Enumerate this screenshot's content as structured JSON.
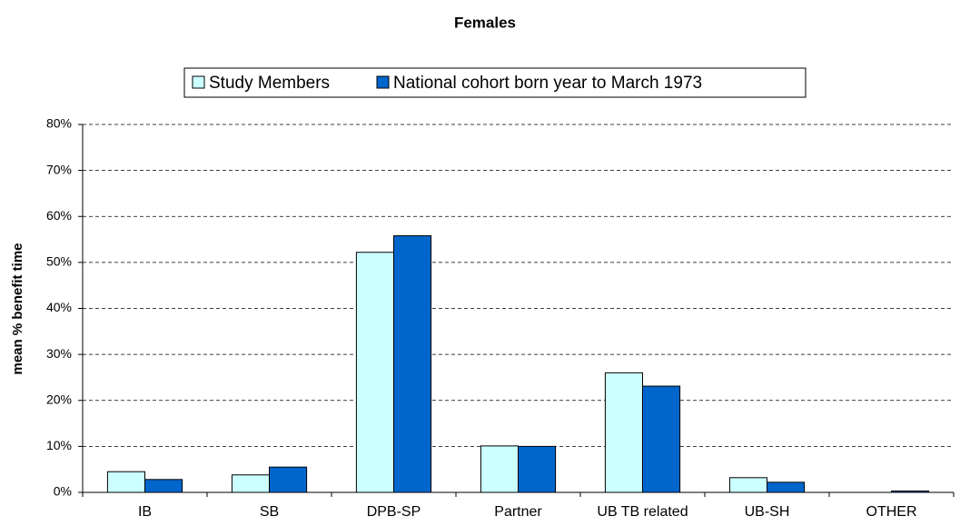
{
  "chart_data": {
    "type": "bar",
    "title": "Females",
    "y_label": "mean % benefit time",
    "categories": [
      "IB",
      "SB",
      "DPB-SP",
      "Partner",
      "UB TB related",
      "UB-SH",
      "OTHER"
    ],
    "series": [
      {
        "name": "Study Members",
        "color": "#ccffff",
        "values": [
          4.5,
          3.8,
          52.2,
          10.1,
          26.0,
          3.2,
          0
        ]
      },
      {
        "name": "National cohort born year to March 1973",
        "color": "#0066cc",
        "values": [
          2.8,
          5.5,
          55.8,
          10.0,
          23.1,
          2.2,
          0.3
        ]
      }
    ],
    "ylim": [
      0,
      80
    ],
    "yticks": [
      {
        "value": 0,
        "label": "0%"
      },
      {
        "value": 10,
        "label": "10%"
      },
      {
        "value": 20,
        "label": "20%"
      },
      {
        "value": 30,
        "label": "30%"
      },
      {
        "value": 40,
        "label": "40%"
      },
      {
        "value": 50,
        "label": "50%"
      },
      {
        "value": 60,
        "label": "60%"
      },
      {
        "value": 70,
        "label": "70%"
      },
      {
        "value": 80,
        "label": "80%"
      }
    ],
    "grid": true,
    "legend": "top"
  }
}
